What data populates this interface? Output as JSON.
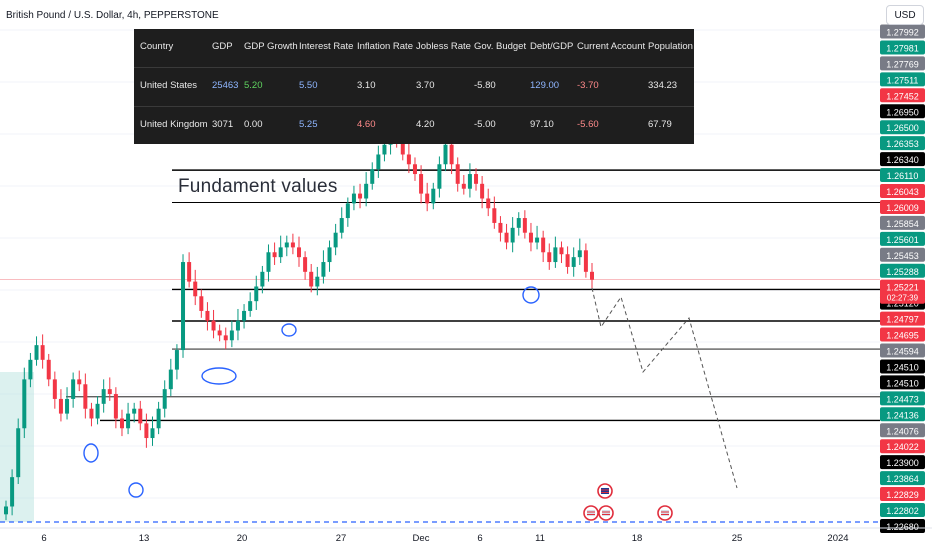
{
  "header": {
    "symbol_title": "British Pound / U.S. Dollar, 4h, PEPPERSTONE",
    "currency_label": "USD"
  },
  "fundamentals_table": {
    "columns": [
      "Country",
      "GDP",
      "GDP Growth",
      "Interest Rate",
      "Inflation Rate",
      "Jobless Rate",
      "Gov. Budget",
      "Debt/GDP",
      "Current Account",
      "Population"
    ],
    "rows": [
      {
        "cells": [
          "United States",
          "25463",
          "5.20",
          "5.50",
          "3.10",
          "3.70",
          "-5.80",
          "129.00",
          "-3.70",
          "334.23"
        ],
        "colors": [
          "#e8e8e8",
          "#8fb6ff",
          "#5fd35f",
          "#8fb6ff",
          "#e8e8e8",
          "#e8e8e8",
          "#e8e8e8",
          "#8fb6ff",
          "#ff8a8a",
          "#e8e8e8"
        ]
      },
      {
        "cells": [
          "United Kingdom",
          "3071",
          "0.00",
          "5.25",
          "4.60",
          "4.20",
          "-5.00",
          "97.10",
          "-5.60",
          "67.79"
        ],
        "colors": [
          "#e8e8e8",
          "#e8e8e8",
          "#e8e8e8",
          "#8fb6ff",
          "#ff8a8a",
          "#e8e8e8",
          "#e8e8e8",
          "#e8e8e8",
          "#ff8a8a",
          "#e8e8e8"
        ]
      }
    ],
    "background": "#1e1e1e"
  },
  "annotation_text": "Fundament values",
  "colors": {
    "up": "#089981",
    "down": "#f23645",
    "level_line": "#000000",
    "marker_blue": "#2962ff",
    "projection": "#555555",
    "baseline_dash": "#2962ff"
  },
  "chart_data": {
    "type": "candlestick",
    "title": "British Pound / U.S. Dollar, 4h, PEPPERSTONE",
    "x_ticks": [
      "6",
      "13",
      "20",
      "27",
      "Dec",
      "6",
      "11",
      "18",
      "25",
      "2024"
    ],
    "y_range": [
      1.2268,
      1.2808
    ],
    "y_ticks": [
      "1.27992",
      "1.27981",
      "1.27769",
      "1.27511",
      "1.27452",
      "1.26950",
      "1.26500",
      "1.26353",
      "1.26340",
      "1.26110",
      "1.26043",
      "1.26009",
      "1.25854",
      "1.25601",
      "1.25453",
      "1.25288",
      "1.25221",
      "1.25120",
      "1.24797",
      "1.24695",
      "1.24594",
      "1.24510",
      "1.24510",
      "1.24473",
      "1.24136",
      "1.24076",
      "1.24022",
      "1.23900",
      "1.23864",
      "1.22829",
      "1.22802",
      "1.22680"
    ],
    "y_tick_styles": [
      "#787b86",
      "#089981",
      "#787b86",
      "#089981",
      "#f23645",
      "#000000",
      "#089981",
      "#089981",
      "#000000",
      "#089981",
      "#f23645",
      "#f23645",
      "#787b86",
      "#089981",
      "#787b86",
      "#089981",
      "#f23645",
      "#000000",
      "#f23645",
      "#f23645",
      "#787b86",
      "#000000",
      "#000000",
      "#089981",
      "#089981",
      "#787b86",
      "#f23645",
      "#000000",
      "#089981",
      "#f23645",
      "#089981",
      "#000000"
    ],
    "current_price": "1.25221",
    "countdown": "02:27:39",
    "support_resistance_levels": [
      1.2634,
      1.26009,
      1.2512,
      1.24797,
      1.2451,
      1.24022,
      1.2378
    ],
    "close_series": [
      1.229,
      1.232,
      1.237,
      1.242,
      1.244,
      1.2455,
      1.244,
      1.242,
      1.24,
      1.2385,
      1.24,
      1.242,
      1.2415,
      1.239,
      1.238,
      1.2395,
      1.241,
      1.2405,
      1.238,
      1.237,
      1.2385,
      1.239,
      1.2375,
      1.236,
      1.237,
      1.239,
      1.241,
      1.243,
      1.245,
      1.254,
      1.252,
      1.2505,
      1.249,
      1.248,
      1.247,
      1.2465,
      1.246,
      1.247,
      1.248,
      1.249,
      1.25,
      1.2515,
      1.253,
      1.255,
      1.2545,
      1.2555,
      1.256,
      1.2555,
      1.2545,
      1.253,
      1.2515,
      1.2525,
      1.254,
      1.2555,
      1.257,
      1.2585,
      1.26,
      1.261,
      1.2605,
      1.262,
      1.2635,
      1.265,
      1.266,
      1.267,
      1.2665,
      1.265,
      1.264,
      1.263,
      1.261,
      1.26,
      1.2615,
      1.264,
      1.266,
      1.264,
      1.262,
      1.2615,
      1.263,
      1.262,
      1.2605,
      1.2595,
      1.258,
      1.257,
      1.256,
      1.2575,
      1.2585,
      1.257,
      1.256,
      1.2565,
      1.255,
      1.254,
      1.2555,
      1.2548,
      1.2535,
      1.2545,
      1.2552,
      1.253,
      1.2522
    ],
    "projection_path": [
      [
        1.2522,
        0
      ],
      [
        1.25,
        1
      ],
      [
        1.2515,
        2
      ],
      [
        1.2455,
        3
      ],
      [
        1.25,
        4
      ],
      [
        1.238,
        5
      ]
    ]
  }
}
